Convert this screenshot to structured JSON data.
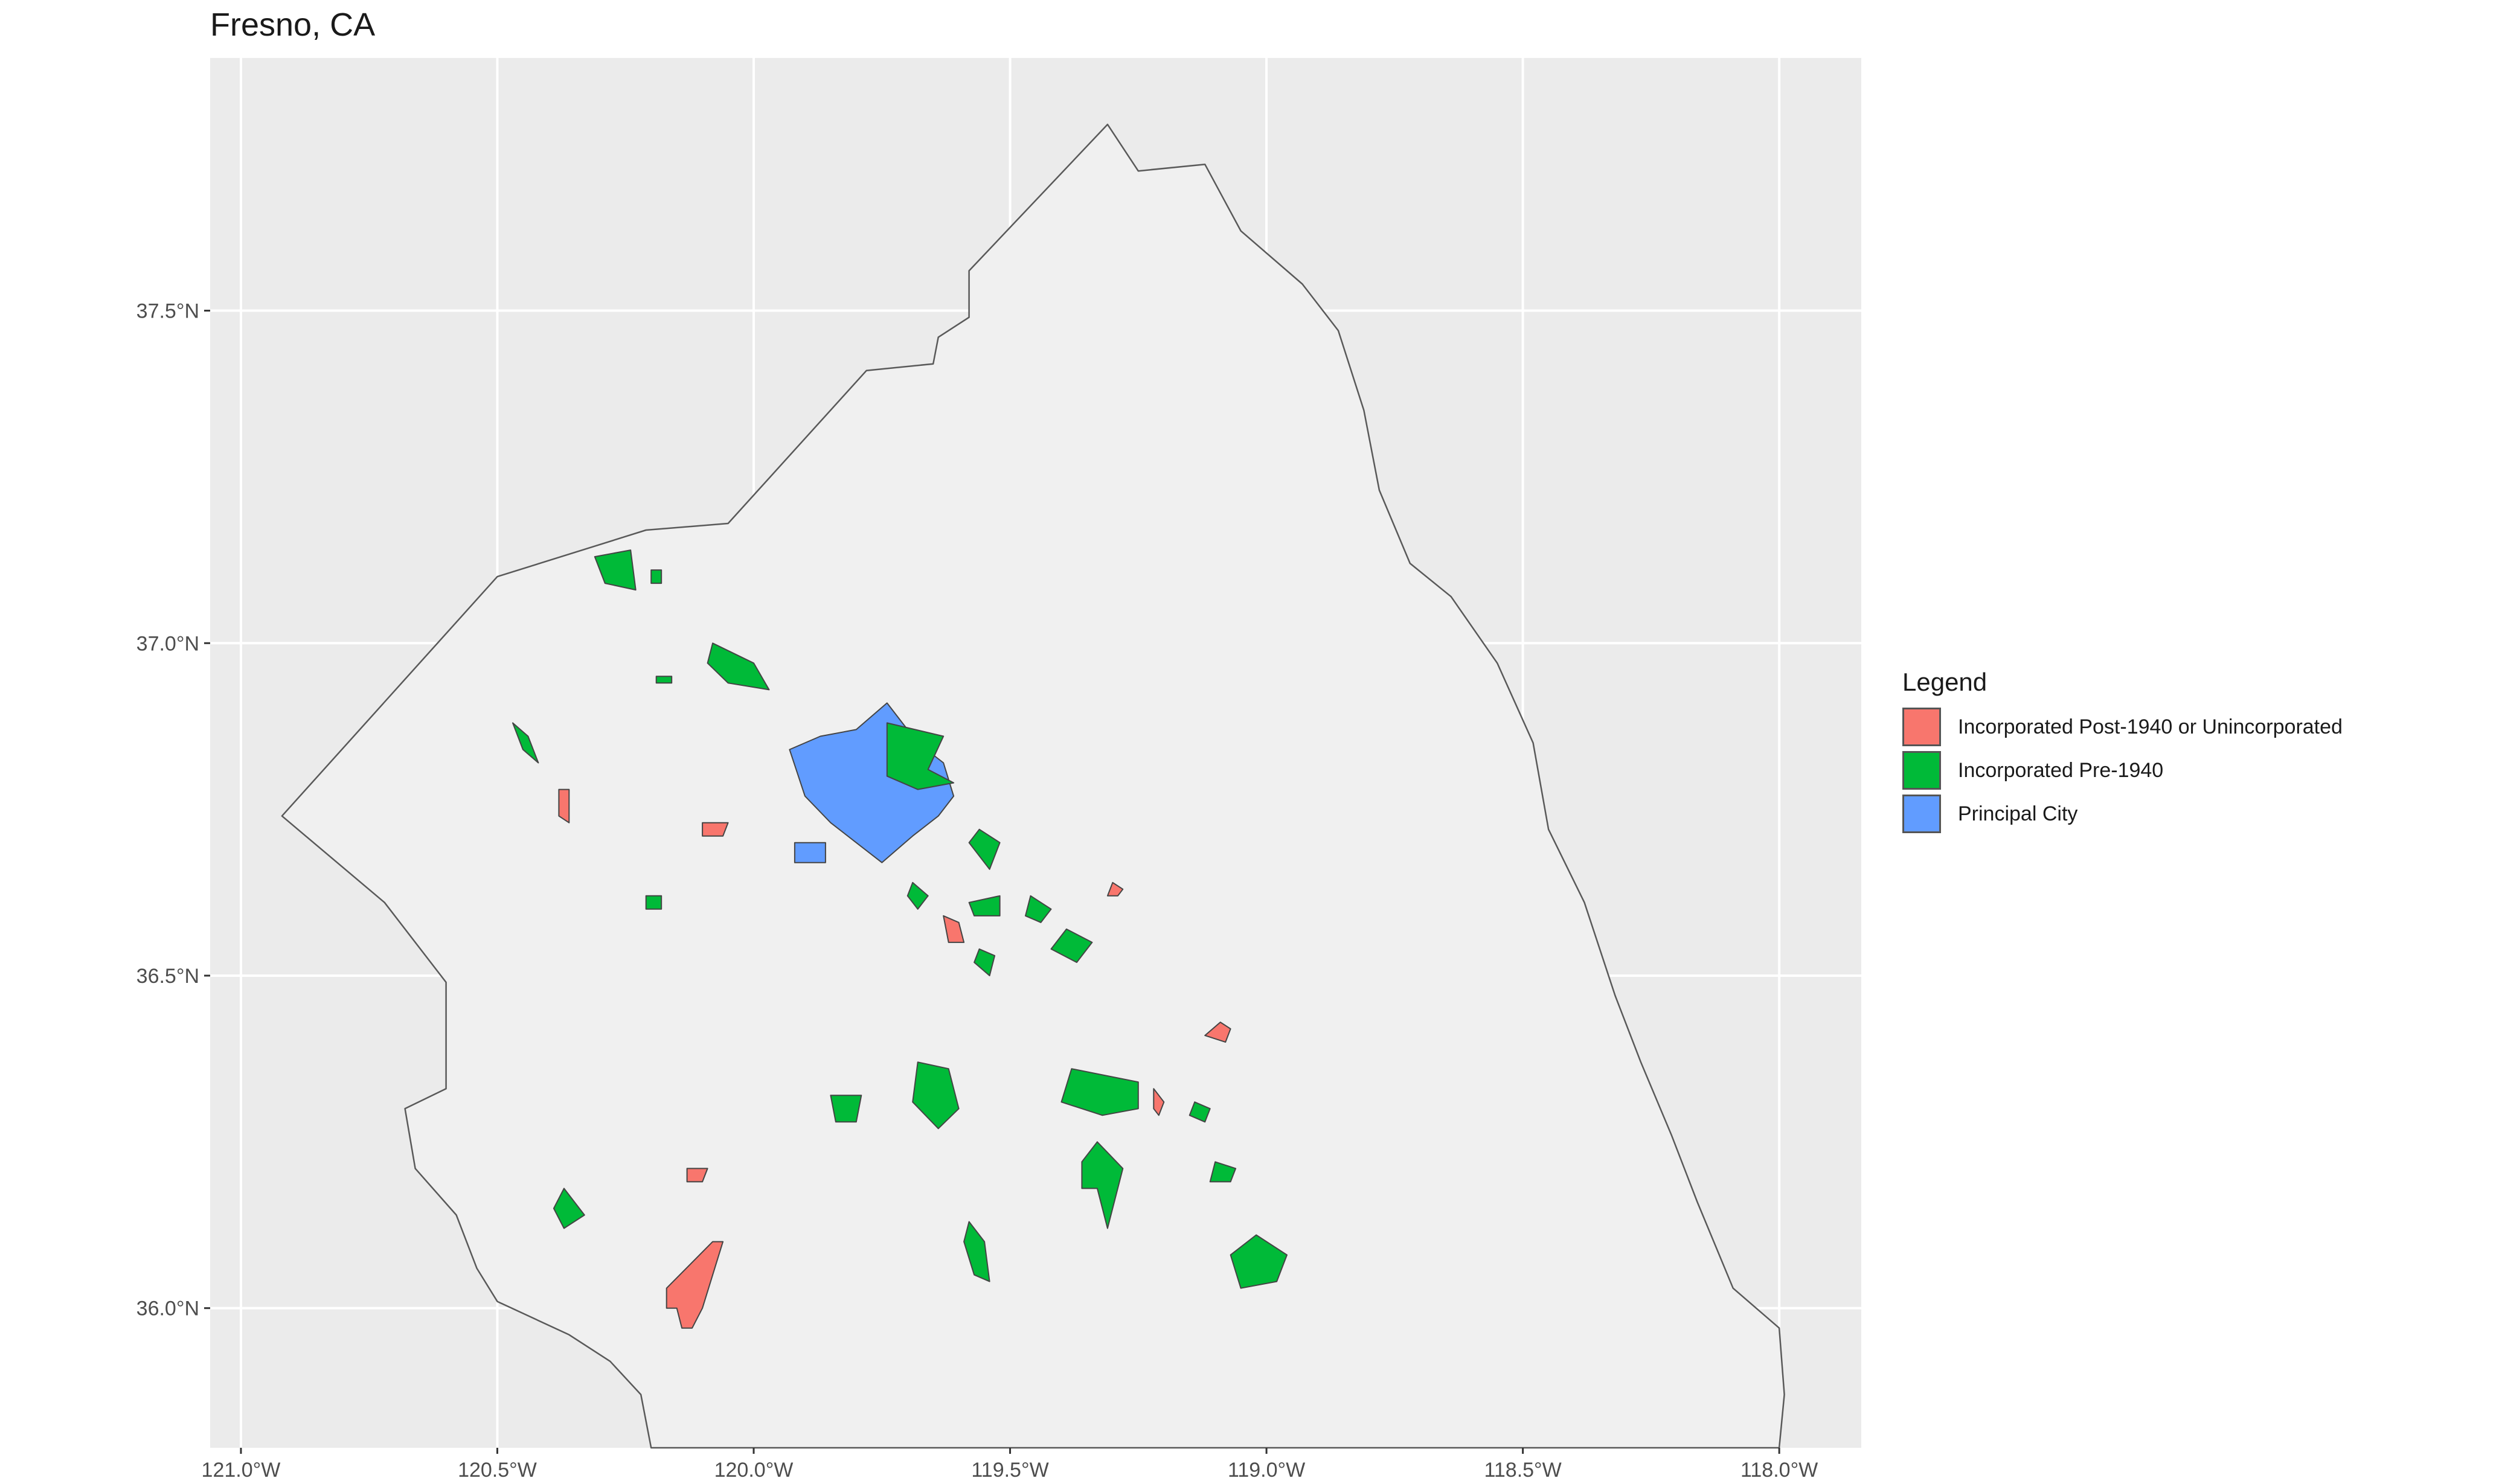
{
  "title": "Fresno, CA",
  "colors": {
    "panel_background": "#ebebeb",
    "county_fill": "#f0f0f0",
    "gridline": "#ffffff",
    "outline": "#595959",
    "incorporated_post_1940": "#f8766d",
    "incorporated_pre_1940": "#00ba38",
    "principal_city": "#619cff"
  },
  "axes": {
    "x_ticks": [
      "121.0°W",
      "120.5°W",
      "120.0°W",
      "119.5°W",
      "119.0°W",
      "118.5°W",
      "118.0°W"
    ],
    "y_ticks": [
      "37.5°N",
      "37.0°N",
      "36.5°N",
      "36.0°N"
    ],
    "x_range_lon": [
      -121.06,
      -117.84
    ],
    "y_range_lat": [
      35.79,
      37.88
    ],
    "grid": true
  },
  "legend": {
    "title": "Legend",
    "position": "right",
    "items": [
      {
        "label": "Incorporated Post-1940 or Unincorporated",
        "color": "#f8766d"
      },
      {
        "label": "Incorporated Pre-1940",
        "color": "#00ba38"
      },
      {
        "label": "Principal City",
        "color": "#619cff"
      }
    ]
  },
  "map_data": {
    "county_boundary_lonlat": [
      [
        -119.31,
        37.78
      ],
      [
        -119.25,
        37.71
      ],
      [
        -119.12,
        37.72
      ],
      [
        -119.05,
        37.62
      ],
      [
        -118.93,
        37.54
      ],
      [
        -118.86,
        37.47
      ],
      [
        -118.81,
        37.35
      ],
      [
        -118.78,
        37.23
      ],
      [
        -118.72,
        37.12
      ],
      [
        -118.64,
        37.07
      ],
      [
        -118.55,
        36.97
      ],
      [
        -118.48,
        36.85
      ],
      [
        -118.45,
        36.72
      ],
      [
        -118.38,
        36.61
      ],
      [
        -118.32,
        36.47
      ],
      [
        -118.27,
        36.37
      ],
      [
        -118.21,
        36.26
      ],
      [
        -118.16,
        36.16
      ],
      [
        -118.09,
        36.03
      ],
      [
        -118.0,
        35.97
      ],
      [
        -117.99,
        35.87
      ],
      [
        -118.0,
        35.79
      ],
      [
        -118.5,
        35.79
      ],
      [
        -120.2,
        35.79
      ],
      [
        -120.22,
        35.87
      ],
      [
        -120.28,
        35.92
      ],
      [
        -120.36,
        35.96
      ],
      [
        -120.5,
        36.01
      ],
      [
        -120.54,
        36.06
      ],
      [
        -120.58,
        36.14
      ],
      [
        -120.66,
        36.21
      ],
      [
        -120.68,
        36.3
      ],
      [
        -120.6,
        36.33
      ],
      [
        -120.6,
        36.49
      ],
      [
        -120.72,
        36.61
      ],
      [
        -120.92,
        36.74
      ],
      [
        -120.5,
        37.1
      ],
      [
        -120.21,
        37.17
      ],
      [
        -120.05,
        37.18
      ],
      [
        -119.78,
        37.41
      ],
      [
        -119.65,
        37.42
      ],
      [
        -119.64,
        37.46
      ],
      [
        -119.58,
        37.49
      ],
      [
        -119.58,
        37.56
      ],
      [
        -119.31,
        37.78
      ]
    ],
    "places": [
      {
        "category": "principal_city",
        "lonlat": [
          [
            -119.74,
            36.91
          ],
          [
            -119.68,
            36.85
          ],
          [
            -119.63,
            36.82
          ],
          [
            -119.61,
            36.77
          ],
          [
            -119.64,
            36.74
          ],
          [
            -119.69,
            36.71
          ],
          [
            -119.75,
            36.67
          ],
          [
            -119.8,
            36.7
          ],
          [
            -119.85,
            36.73
          ],
          [
            -119.9,
            36.77
          ],
          [
            -119.93,
            36.84
          ],
          [
            -119.87,
            36.86
          ],
          [
            -119.8,
            36.87
          ]
        ]
      },
      {
        "category": "principal_city",
        "lonlat": [
          [
            -119.92,
            36.7
          ],
          [
            -119.86,
            36.7
          ],
          [
            -119.86,
            36.67
          ],
          [
            -119.92,
            36.67
          ]
        ]
      },
      {
        "category": "incorporated_pre_1940",
        "lonlat": [
          [
            -119.74,
            36.88
          ],
          [
            -119.63,
            36.86
          ],
          [
            -119.66,
            36.81
          ],
          [
            -119.61,
            36.79
          ],
          [
            -119.68,
            36.78
          ],
          [
            -119.74,
            36.8
          ]
        ]
      },
      {
        "category": "incorporated_pre_1940",
        "lonlat": [
          [
            -120.31,
            37.13
          ],
          [
            -120.24,
            37.14
          ],
          [
            -120.23,
            37.08
          ],
          [
            -120.29,
            37.09
          ]
        ]
      },
      {
        "category": "incorporated_pre_1940",
        "lonlat": [
          [
            -120.2,
            37.11
          ],
          [
            -120.18,
            37.11
          ],
          [
            -120.18,
            37.09
          ],
          [
            -120.2,
            37.09
          ]
        ]
      },
      {
        "category": "incorporated_pre_1940",
        "lonlat": [
          [
            -120.08,
            37.0
          ],
          [
            -120.0,
            36.97
          ],
          [
            -119.97,
            36.93
          ],
          [
            -120.05,
            36.94
          ],
          [
            -120.09,
            36.97
          ]
        ]
      },
      {
        "category": "incorporated_pre_1940",
        "lonlat": [
          [
            -120.19,
            36.95
          ],
          [
            -120.16,
            36.95
          ],
          [
            -120.16,
            36.94
          ],
          [
            -120.19,
            36.94
          ]
        ]
      },
      {
        "category": "incorporated_pre_1940",
        "lonlat": [
          [
            -120.47,
            36.88
          ],
          [
            -120.44,
            36.86
          ],
          [
            -120.42,
            36.82
          ],
          [
            -120.45,
            36.84
          ]
        ]
      },
      {
        "category": "incorporated_pre_1940",
        "lonlat": [
          [
            -119.56,
            36.72
          ],
          [
            -119.52,
            36.7
          ],
          [
            -119.54,
            36.66
          ],
          [
            -119.58,
            36.7
          ]
        ]
      },
      {
        "category": "incorporated_pre_1940",
        "lonlat": [
          [
            -119.69,
            36.64
          ],
          [
            -119.66,
            36.62
          ],
          [
            -119.68,
            36.6
          ],
          [
            -119.7,
            36.62
          ]
        ]
      },
      {
        "category": "incorporated_pre_1940",
        "lonlat": [
          [
            -119.58,
            36.61
          ],
          [
            -119.52,
            36.62
          ],
          [
            -119.52,
            36.59
          ],
          [
            -119.57,
            36.59
          ]
        ]
      },
      {
        "category": "incorporated_pre_1940",
        "lonlat": [
          [
            -119.46,
            36.62
          ],
          [
            -119.42,
            36.6
          ],
          [
            -119.44,
            36.58
          ],
          [
            -119.47,
            36.59
          ]
        ]
      },
      {
        "category": "incorporated_pre_1940",
        "lonlat": [
          [
            -119.39,
            36.57
          ],
          [
            -119.34,
            36.55
          ],
          [
            -119.37,
            36.52
          ],
          [
            -119.42,
            36.54
          ]
        ]
      },
      {
        "category": "incorporated_pre_1940",
        "lonlat": [
          [
            -119.56,
            36.54
          ],
          [
            -119.53,
            36.53
          ],
          [
            -119.54,
            36.5
          ],
          [
            -119.57,
            36.52
          ]
        ]
      },
      {
        "category": "incorporated_pre_1940",
        "lonlat": [
          [
            -120.21,
            36.62
          ],
          [
            -120.18,
            36.62
          ],
          [
            -120.18,
            36.6
          ],
          [
            -120.21,
            36.6
          ]
        ]
      },
      {
        "category": "incorporated_pre_1940",
        "lonlat": [
          [
            -119.68,
            36.37
          ],
          [
            -119.62,
            36.36
          ],
          [
            -119.6,
            36.3
          ],
          [
            -119.64,
            36.27
          ],
          [
            -119.69,
            36.31
          ]
        ]
      },
      {
        "category": "incorporated_pre_1940",
        "lonlat": [
          [
            -119.85,
            36.32
          ],
          [
            -119.79,
            36.32
          ],
          [
            -119.8,
            36.28
          ],
          [
            -119.84,
            36.28
          ]
        ]
      },
      {
        "category": "incorporated_pre_1940",
        "lonlat": [
          [
            -119.38,
            36.36
          ],
          [
            -119.25,
            36.34
          ],
          [
            -119.25,
            36.3
          ],
          [
            -119.32,
            36.29
          ],
          [
            -119.4,
            36.31
          ]
        ]
      },
      {
        "category": "incorporated_pre_1940",
        "lonlat": [
          [
            -119.14,
            36.31
          ],
          [
            -119.11,
            36.3
          ],
          [
            -119.12,
            36.28
          ],
          [
            -119.15,
            36.29
          ]
        ]
      },
      {
        "category": "incorporated_pre_1940",
        "lonlat": [
          [
            -119.33,
            36.25
          ],
          [
            -119.28,
            36.21
          ],
          [
            -119.31,
            36.12
          ],
          [
            -119.33,
            36.18
          ],
          [
            -119.36,
            36.18
          ],
          [
            -119.36,
            36.22
          ]
        ]
      },
      {
        "category": "incorporated_pre_1940",
        "lonlat": [
          [
            -119.1,
            36.22
          ],
          [
            -119.06,
            36.21
          ],
          [
            -119.07,
            36.19
          ],
          [
            -119.11,
            36.19
          ]
        ]
      },
      {
        "category": "incorporated_pre_1940",
        "lonlat": [
          [
            -120.37,
            36.18
          ],
          [
            -120.33,
            36.14
          ],
          [
            -120.37,
            36.12
          ],
          [
            -120.39,
            36.15
          ]
        ]
      },
      {
        "category": "incorporated_pre_1940",
        "lonlat": [
          [
            -119.58,
            36.13
          ],
          [
            -119.55,
            36.1
          ],
          [
            -119.54,
            36.04
          ],
          [
            -119.57,
            36.05
          ],
          [
            -119.59,
            36.1
          ]
        ]
      },
      {
        "category": "incorporated_pre_1940",
        "lonlat": [
          [
            -119.02,
            36.11
          ],
          [
            -118.96,
            36.08
          ],
          [
            -118.98,
            36.04
          ],
          [
            -119.05,
            36.03
          ],
          [
            -119.07,
            36.08
          ]
        ]
      },
      {
        "category": "incorporated_post_1940",
        "lonlat": [
          [
            -120.38,
            36.78
          ],
          [
            -120.36,
            36.78
          ],
          [
            -120.36,
            36.73
          ],
          [
            -120.38,
            36.74
          ]
        ]
      },
      {
        "category": "incorporated_post_1940",
        "lonlat": [
          [
            -120.1,
            36.73
          ],
          [
            -120.05,
            36.73
          ],
          [
            -120.06,
            36.71
          ],
          [
            -120.1,
            36.71
          ]
        ]
      },
      {
        "category": "incorporated_post_1940",
        "lonlat": [
          [
            -119.63,
            36.59
          ],
          [
            -119.6,
            36.58
          ],
          [
            -119.59,
            36.55
          ],
          [
            -119.62,
            36.55
          ]
        ]
      },
      {
        "category": "incorporated_post_1940",
        "lonlat": [
          [
            -119.3,
            36.64
          ],
          [
            -119.28,
            36.63
          ],
          [
            -119.29,
            36.62
          ],
          [
            -119.31,
            36.62
          ]
        ]
      },
      {
        "category": "incorporated_post_1940",
        "lonlat": [
          [
            -119.09,
            36.43
          ],
          [
            -119.07,
            36.42
          ],
          [
            -119.08,
            36.4
          ],
          [
            -119.12,
            36.41
          ]
        ]
      },
      {
        "category": "incorporated_post_1940",
        "lonlat": [
          [
            -119.22,
            36.33
          ],
          [
            -119.2,
            36.31
          ],
          [
            -119.21,
            36.29
          ],
          [
            -119.22,
            36.3
          ]
        ]
      },
      {
        "category": "incorporated_post_1940",
        "lonlat": [
          [
            -120.13,
            36.21
          ],
          [
            -120.09,
            36.21
          ],
          [
            -120.1,
            36.19
          ],
          [
            -120.13,
            36.19
          ]
        ]
      },
      {
        "category": "incorporated_post_1940",
        "lonlat": [
          [
            -120.17,
            36.03
          ],
          [
            -120.08,
            36.1
          ],
          [
            -120.06,
            36.1
          ],
          [
            -120.1,
            36.0
          ],
          [
            -120.12,
            35.97
          ],
          [
            -120.14,
            35.97
          ],
          [
            -120.15,
            36.0
          ],
          [
            -120.17,
            36.0
          ]
        ]
      }
    ]
  }
}
